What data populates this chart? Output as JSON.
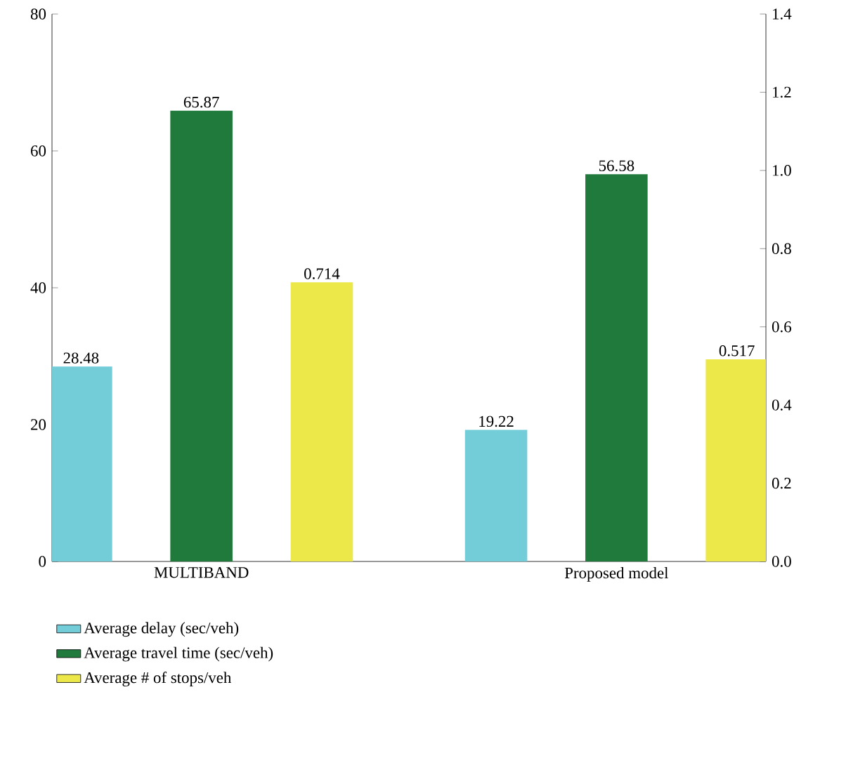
{
  "chart_data": {
    "type": "bar",
    "categories": [
      "MULTIBAND",
      "Proposed model"
    ],
    "series": [
      {
        "name": "Average delay (sec/veh)",
        "color": "#72cdd9",
        "values": [
          28.48,
          19.22
        ]
      },
      {
        "name": "Average travel time (sec/veh)",
        "color": "#207a3c",
        "values": [
          65.87,
          56.58
        ]
      },
      {
        "name": "Average # of stops/veh",
        "color": "#ede84a",
        "values": [
          0.714,
          0.517
        ],
        "axis": "y2"
      }
    ],
    "ylim": [
      0,
      80
    ],
    "yticks": [
      0,
      20,
      40,
      60,
      80
    ],
    "y2lim": [
      0,
      1.4
    ],
    "y2ticks": [
      {
        "value": 0,
        "label": "0.0"
      },
      {
        "value": 0.2,
        "label": "0.2"
      },
      {
        "value": 0.4,
        "label": "0.4"
      },
      {
        "value": 0.6,
        "label": "0.6"
      },
      {
        "value": 0.8,
        "label": "0.8"
      },
      {
        "value": 1.0,
        "label": "1.0"
      },
      {
        "value": 1.2,
        "label": "1.2"
      },
      {
        "value": 1.4,
        "label": "1.4"
      }
    ],
    "data_labels": true,
    "legend": "bottom"
  }
}
